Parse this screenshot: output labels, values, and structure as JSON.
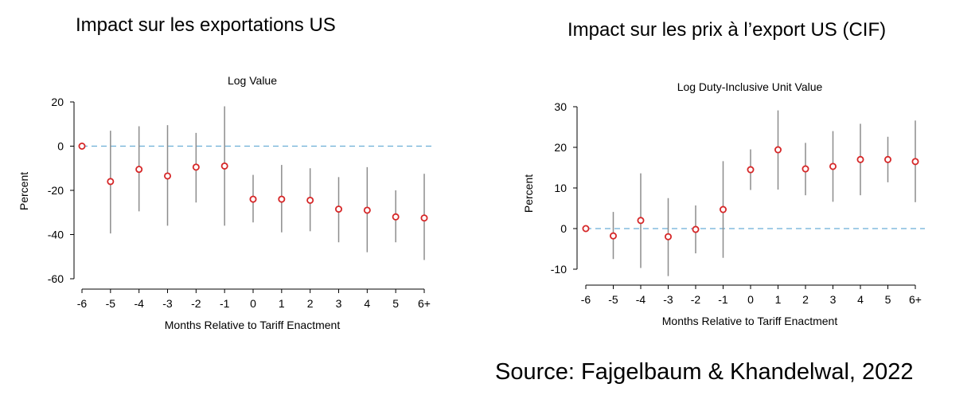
{
  "panels": {
    "left_title": "Impact sur les exportations US",
    "right_title": "Impact sur les prix à l’export US (CIF)"
  },
  "source": "Source: Fajgelbaum & Khandelwal, 2022",
  "colors": {
    "marker": "#d62728",
    "errorbar": "#8c8c8c",
    "reference_line": "#6baed6",
    "axis": "#000000"
  },
  "chart_data": [
    {
      "type": "scatter",
      "title": "Log Value",
      "xlabel": "Months Relative to Tariff Enactment",
      "ylabel": "Percent",
      "categories": [
        "-6",
        "-5",
        "-4",
        "-3",
        "-2",
        "-1",
        "0",
        "1",
        "2",
        "3",
        "4",
        "5",
        "6+"
      ],
      "values": [
        0,
        -16,
        -10.5,
        -13.5,
        -9.5,
        -9,
        -24,
        -24,
        -24.5,
        -28.5,
        -29,
        -32,
        -32.5
      ],
      "ci_low": [
        0,
        -39.5,
        -29.5,
        -36,
        -25.5,
        -36,
        -34.5,
        -39,
        -38.5,
        -43.5,
        -48,
        -43.5,
        -51.5
      ],
      "ci_high": [
        0,
        7,
        9,
        9.5,
        6,
        18,
        -13,
        -8.5,
        -10,
        -14,
        -9.5,
        -20,
        -12.5
      ],
      "ylim": [
        -60,
        20
      ],
      "yticks": [
        20,
        0,
        -20,
        -40,
        -60
      ],
      "ytick_labels": [
        "20",
        "0",
        "-20",
        "-40",
        "-60"
      ],
      "reference_line": 0,
      "grid": false
    },
    {
      "type": "scatter",
      "title": "Log Duty-Inclusive Unit Value",
      "xlabel": "Months Relative to Tariff Enactment",
      "ylabel": "Percent",
      "categories": [
        "-6",
        "-5",
        "-4",
        "-3",
        "-2",
        "-1",
        "0",
        "1",
        "2",
        "3",
        "4",
        "5",
        "6+"
      ],
      "values": [
        0,
        -1.8,
        2,
        -2,
        -0.2,
        4.7,
        14.5,
        19.4,
        14.7,
        15.3,
        17,
        17,
        16.5
      ],
      "ci_low": [
        0,
        -7.5,
        -9.7,
        -11.7,
        -6.1,
        -7.2,
        9.5,
        9.6,
        8.2,
        6.6,
        8.2,
        11.4,
        6.5
      ],
      "ci_high": [
        0,
        4.1,
        13.6,
        7.5,
        5.7,
        16.6,
        19.5,
        29.1,
        21.1,
        24,
        25.8,
        22.6,
        26.6
      ],
      "ylim": [
        -10,
        30
      ],
      "yticks": [
        30,
        20,
        10,
        0,
        -10
      ],
      "ytick_labels": [
        "30",
        "20",
        "10",
        "0",
        "-10"
      ],
      "reference_line": 0,
      "grid": false
    }
  ]
}
